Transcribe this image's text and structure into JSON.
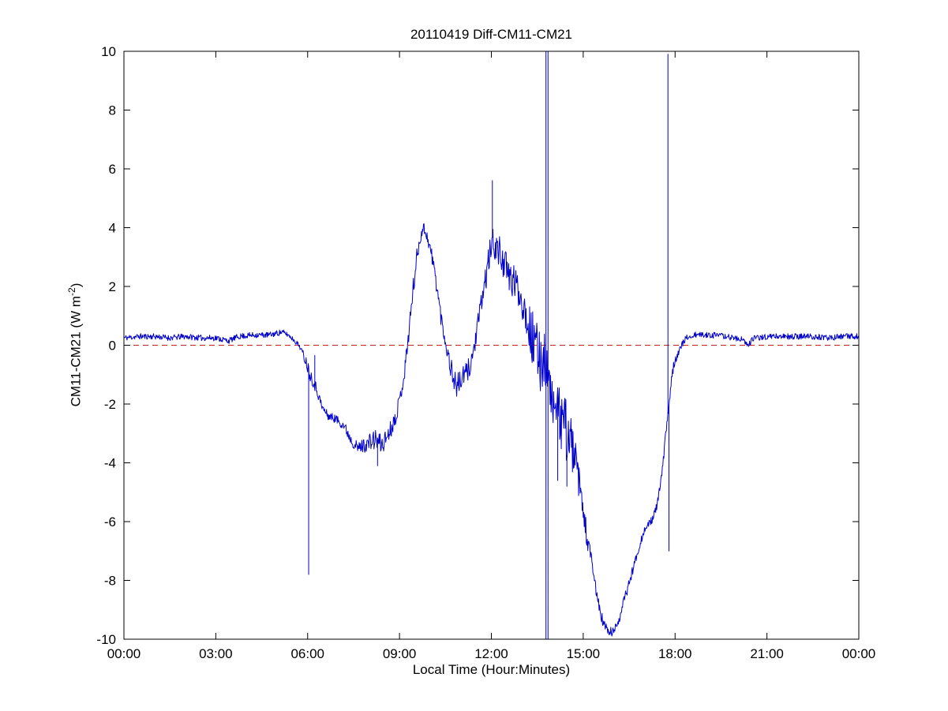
{
  "figure": {
    "background": "#ffffff"
  },
  "chart_data": {
    "type": "line",
    "title": "20110419 Diff-CM11-CM21",
    "xlabel": "Local Time (Hour:Minutes)",
    "ylabel_prefix": "CM11-CM21 (W m",
    "ylabel_sup": "-2",
    "ylabel_suffix": ")",
    "xlim": [
      0,
      1440
    ],
    "ylim": [
      -10,
      10
    ],
    "grid": "off",
    "legend": "none",
    "axis_color": "#000000",
    "yticks": [
      -10,
      -8,
      -6,
      -4,
      -2,
      0,
      2,
      4,
      6,
      8,
      10
    ],
    "xticks": [
      {
        "t": 0,
        "label": "00:00"
      },
      {
        "t": 180,
        "label": "03:00"
      },
      {
        "t": 360,
        "label": "06:00"
      },
      {
        "t": 540,
        "label": "09:00"
      },
      {
        "t": 720,
        "label": "12:00"
      },
      {
        "t": 900,
        "label": "15:00"
      },
      {
        "t": 1080,
        "label": "18:00"
      },
      {
        "t": 1260,
        "label": "21:00"
      },
      {
        "t": 1440,
        "label": "00:00"
      }
    ],
    "zero_line": {
      "y": 0,
      "color": "#cc2222",
      "style": "dashed"
    },
    "noise_seed": 11,
    "series": [
      {
        "name": "CM11-CM21 difference",
        "color": "#0000cc",
        "anchors": [
          [
            0,
            0.25,
            0.1
          ],
          [
            30,
            0.3,
            0.1
          ],
          [
            60,
            0.3,
            0.1
          ],
          [
            90,
            0.25,
            0.1
          ],
          [
            120,
            0.3,
            0.1
          ],
          [
            150,
            0.25,
            0.1
          ],
          [
            180,
            0.25,
            0.1
          ],
          [
            205,
            0.15,
            0.1
          ],
          [
            225,
            0.3,
            0.1
          ],
          [
            255,
            0.35,
            0.1
          ],
          [
            285,
            0.35,
            0.1
          ],
          [
            310,
            0.45,
            0.1
          ],
          [
            322,
            0.35,
            0.08
          ],
          [
            335,
            0.15,
            0.08
          ],
          [
            345,
            -0.05,
            0.1
          ],
          [
            352,
            -0.35,
            0.15
          ],
          [
            358,
            -0.6,
            0.2
          ],
          [
            363,
            -0.9,
            0.25
          ],
          [
            370,
            -1.2,
            0.2
          ],
          [
            378,
            -1.5,
            0.2
          ],
          [
            388,
            -2.1,
            0.15
          ],
          [
            400,
            -2.4,
            0.15
          ],
          [
            415,
            -2.5,
            0.15
          ],
          [
            430,
            -2.7,
            0.18
          ],
          [
            445,
            -3.2,
            0.2
          ],
          [
            458,
            -3.5,
            0.2
          ],
          [
            470,
            -3.4,
            0.25
          ],
          [
            482,
            -3.3,
            0.3
          ],
          [
            494,
            -3.2,
            0.35
          ],
          [
            506,
            -3.4,
            0.35
          ],
          [
            515,
            -3.1,
            0.3
          ],
          [
            524,
            -2.8,
            0.3
          ],
          [
            533,
            -2.4,
            0.25
          ],
          [
            542,
            -1.7,
            0.25
          ],
          [
            550,
            -0.9,
            0.3
          ],
          [
            558,
            0.4,
            0.3
          ],
          [
            566,
            1.8,
            0.35
          ],
          [
            574,
            3.0,
            0.3
          ],
          [
            582,
            3.8,
            0.25
          ],
          [
            588,
            4.0,
            0.2
          ],
          [
            594,
            3.7,
            0.2
          ],
          [
            600,
            3.3,
            0.25
          ],
          [
            607,
            2.7,
            0.3
          ],
          [
            614,
            1.9,
            0.3
          ],
          [
            621,
            1.0,
            0.3
          ],
          [
            628,
            0.3,
            0.25
          ],
          [
            636,
            -0.4,
            0.3
          ],
          [
            644,
            -1.0,
            0.4
          ],
          [
            652,
            -1.4,
            0.4
          ],
          [
            660,
            -1.2,
            0.4
          ],
          [
            668,
            -1.0,
            0.35
          ],
          [
            676,
            -0.8,
            0.4
          ],
          [
            684,
            -0.3,
            0.35
          ],
          [
            692,
            0.5,
            0.35
          ],
          [
            700,
            1.4,
            0.4
          ],
          [
            708,
            2.2,
            0.45
          ],
          [
            716,
            3.0,
            0.5
          ],
          [
            722,
            3.5,
            0.5
          ],
          [
            728,
            3.4,
            0.55
          ],
          [
            736,
            3.1,
            0.6
          ],
          [
            744,
            2.9,
            0.6
          ],
          [
            752,
            2.4,
            0.55
          ],
          [
            760,
            2.2,
            0.6
          ],
          [
            768,
            2.1,
            0.55
          ],
          [
            776,
            1.7,
            0.55
          ],
          [
            784,
            1.3,
            0.6
          ],
          [
            792,
            0.8,
            0.7
          ],
          [
            800,
            0.2,
            1.0
          ],
          [
            808,
            -0.3,
            1.1
          ],
          [
            816,
            -0.4,
            1.2
          ],
          [
            824,
            -0.4,
            1.0
          ],
          [
            830,
            -0.9,
            0.7
          ],
          [
            836,
            -1.6,
            0.6
          ],
          [
            844,
            -2.2,
            0.7
          ],
          [
            852,
            -2.4,
            1.0
          ],
          [
            860,
            -2.6,
            1.1
          ],
          [
            868,
            -2.9,
            1.1
          ],
          [
            876,
            -3.3,
            0.9
          ],
          [
            884,
            -3.9,
            0.7
          ],
          [
            892,
            -4.7,
            0.55
          ],
          [
            900,
            -5.7,
            0.45
          ],
          [
            908,
            -6.6,
            0.4
          ],
          [
            916,
            -7.4,
            0.35
          ],
          [
            924,
            -8.2,
            0.3
          ],
          [
            932,
            -9.0,
            0.25
          ],
          [
            940,
            -9.5,
            0.2
          ],
          [
            948,
            -9.7,
            0.18
          ],
          [
            956,
            -9.8,
            0.18
          ],
          [
            964,
            -9.6,
            0.18
          ],
          [
            972,
            -9.2,
            0.18
          ],
          [
            980,
            -8.7,
            0.18
          ],
          [
            988,
            -8.2,
            0.18
          ],
          [
            996,
            -7.7,
            0.16
          ],
          [
            1004,
            -7.2,
            0.15
          ],
          [
            1012,
            -6.7,
            0.14
          ],
          [
            1020,
            -6.3,
            0.12
          ],
          [
            1028,
            -6.1,
            0.12
          ],
          [
            1036,
            -5.9,
            0.12
          ],
          [
            1044,
            -5.5,
            0.14
          ],
          [
            1051,
            -4.8,
            0.15
          ],
          [
            1057,
            -3.9,
            0.18
          ],
          [
            1062,
            -3.0,
            0.2
          ],
          [
            1066,
            -2.4,
            0.2
          ],
          [
            1069,
            -1.8,
            0.25
          ],
          [
            1073,
            -1.1,
            0.2
          ],
          [
            1078,
            -0.6,
            0.15
          ],
          [
            1085,
            -0.3,
            0.12
          ],
          [
            1093,
            0.0,
            0.12
          ],
          [
            1102,
            0.25,
            0.1
          ],
          [
            1120,
            0.35,
            0.1
          ],
          [
            1150,
            0.35,
            0.1
          ],
          [
            1180,
            0.3,
            0.1
          ],
          [
            1210,
            0.2,
            0.1
          ],
          [
            1222,
            0.0,
            0.1
          ],
          [
            1235,
            0.25,
            0.1
          ],
          [
            1265,
            0.3,
            0.1
          ],
          [
            1300,
            0.3,
            0.1
          ],
          [
            1340,
            0.3,
            0.1
          ],
          [
            1380,
            0.25,
            0.1
          ],
          [
            1410,
            0.3,
            0.1
          ],
          [
            1440,
            0.3,
            0.1
          ]
        ],
        "spikes": [
          [
            362,
            -7.8
          ],
          [
            374,
            -0.35
          ],
          [
            497,
            -4.1
          ],
          [
            722,
            5.6
          ],
          [
            827,
            12,
            -12
          ],
          [
            831,
            12,
            -12
          ],
          [
            850,
            -4.6
          ],
          [
            868,
            -4.8
          ],
          [
            1066,
            9.9
          ],
          [
            1068,
            -7.0
          ]
        ]
      }
    ]
  }
}
